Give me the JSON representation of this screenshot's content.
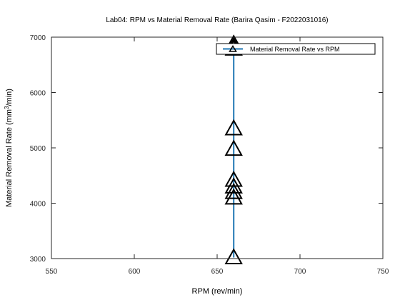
{
  "chart_data": {
    "type": "line",
    "title": "Lab04: RPM vs Material Removal Rate (Barira Qasim - F2022031016)",
    "xlabel": "RPM (rev/min)",
    "ylabel_main": "Material Removal Rate (mm",
    "ylabel_sup": "3",
    "ylabel_tail": "/min)",
    "xlim": [
      550,
      750
    ],
    "ylim": [
      3000,
      7000
    ],
    "xticks": [
      550,
      600,
      650,
      700,
      750
    ],
    "yticks": [
      3000,
      4000,
      5000,
      6000,
      7000
    ],
    "grid": false,
    "legend_position": "top-right",
    "series": [
      {
        "name": "Material Removal Rate vs RPM",
        "color": "#1f77b4",
        "marker": "triangle",
        "marker_color": "#000000",
        "x": [
          660,
          660,
          660,
          660,
          660,
          660,
          660,
          660,
          660,
          660
        ],
        "y": [
          3020,
          4100,
          4200,
          4300,
          4420,
          4980,
          5350,
          6790,
          6830,
          6880
        ]
      }
    ]
  }
}
